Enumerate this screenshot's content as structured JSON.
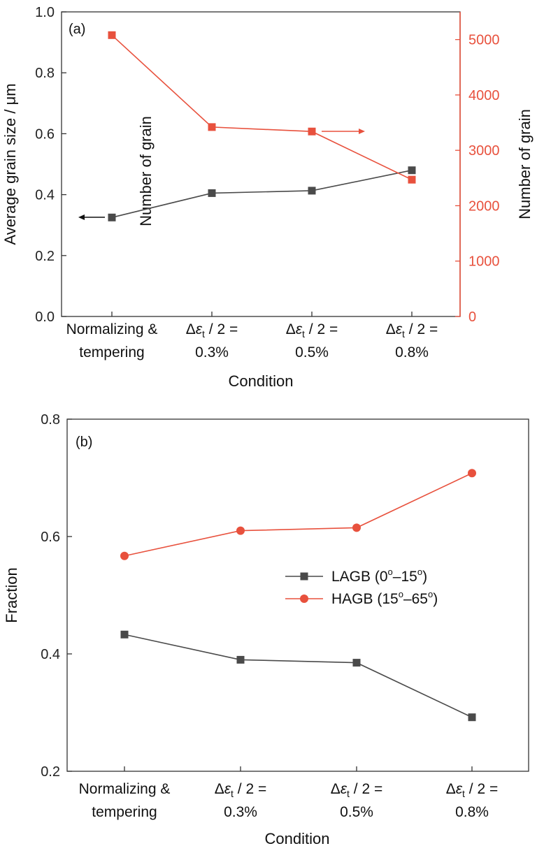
{
  "colors": {
    "dark": "#4a4a4a",
    "red": "#e8513d",
    "axis": "#333333",
    "text": "#111111"
  },
  "categories": [
    {
      "line1": "Normalizing &",
      "line2": "tempering",
      "delta": ""
    },
    {
      "line1": "/ 2 =",
      "line2": "0.3%",
      "delta": "Δε",
      "sub": "t"
    },
    {
      "line1": "/ 2 =",
      "line2": "0.5%",
      "delta": "Δε",
      "sub": "t"
    },
    {
      "line1": "/ 2 =",
      "line2": "0.8%",
      "delta": "Δε",
      "sub": "t"
    }
  ],
  "chart_data": [
    {
      "panel_label": "(a)",
      "type": "line",
      "xlabel": "Condition",
      "ylabel": "Average grain size / μm",
      "ylabel_right": "Number of grain",
      "ylim": [
        0,
        1.0
      ],
      "yticks": [
        "0.0",
        "0.2",
        "0.4",
        "0.6",
        "0.8",
        "1.0"
      ],
      "ylim_right": [
        0,
        5500
      ],
      "yticks_right": [
        "0",
        "1000",
        "2000",
        "3000",
        "4000",
        "5000"
      ],
      "annotation": "Number of grain",
      "series": [
        {
          "axis": "left",
          "color": "#4a4a4a",
          "marker": "square",
          "values": [
            0.325,
            0.405,
            0.413,
            0.48
          ]
        },
        {
          "axis": "right",
          "color": "#e8513d",
          "marker": "square",
          "values": [
            5080,
            3420,
            3340,
            2470
          ]
        }
      ]
    },
    {
      "panel_label": "(b)",
      "type": "line",
      "xlabel": "Condition",
      "ylabel": "Fraction",
      "ylim": [
        0.2,
        0.8
      ],
      "yticks": [
        "0.2",
        "0.4",
        "0.6",
        "0.8"
      ],
      "legend_position": "center-right",
      "series": [
        {
          "name": "LAGB (0°–15°)",
          "legend_main": "LAGB (0",
          "legend_sup1": "o",
          "legend_mid": "–15",
          "legend_sup2": "o",
          "legend_end": ")",
          "color": "#4a4a4a",
          "marker": "square",
          "values": [
            0.433,
            0.39,
            0.385,
            0.292
          ]
        },
        {
          "name": "HAGB (15°–65°)",
          "legend_main": "HAGB (15",
          "legend_sup1": "o",
          "legend_mid": "–65",
          "legend_sup2": "o",
          "legend_end": ")",
          "color": "#e8513d",
          "marker": "circle",
          "values": [
            0.567,
            0.61,
            0.615,
            0.708
          ]
        }
      ]
    }
  ]
}
